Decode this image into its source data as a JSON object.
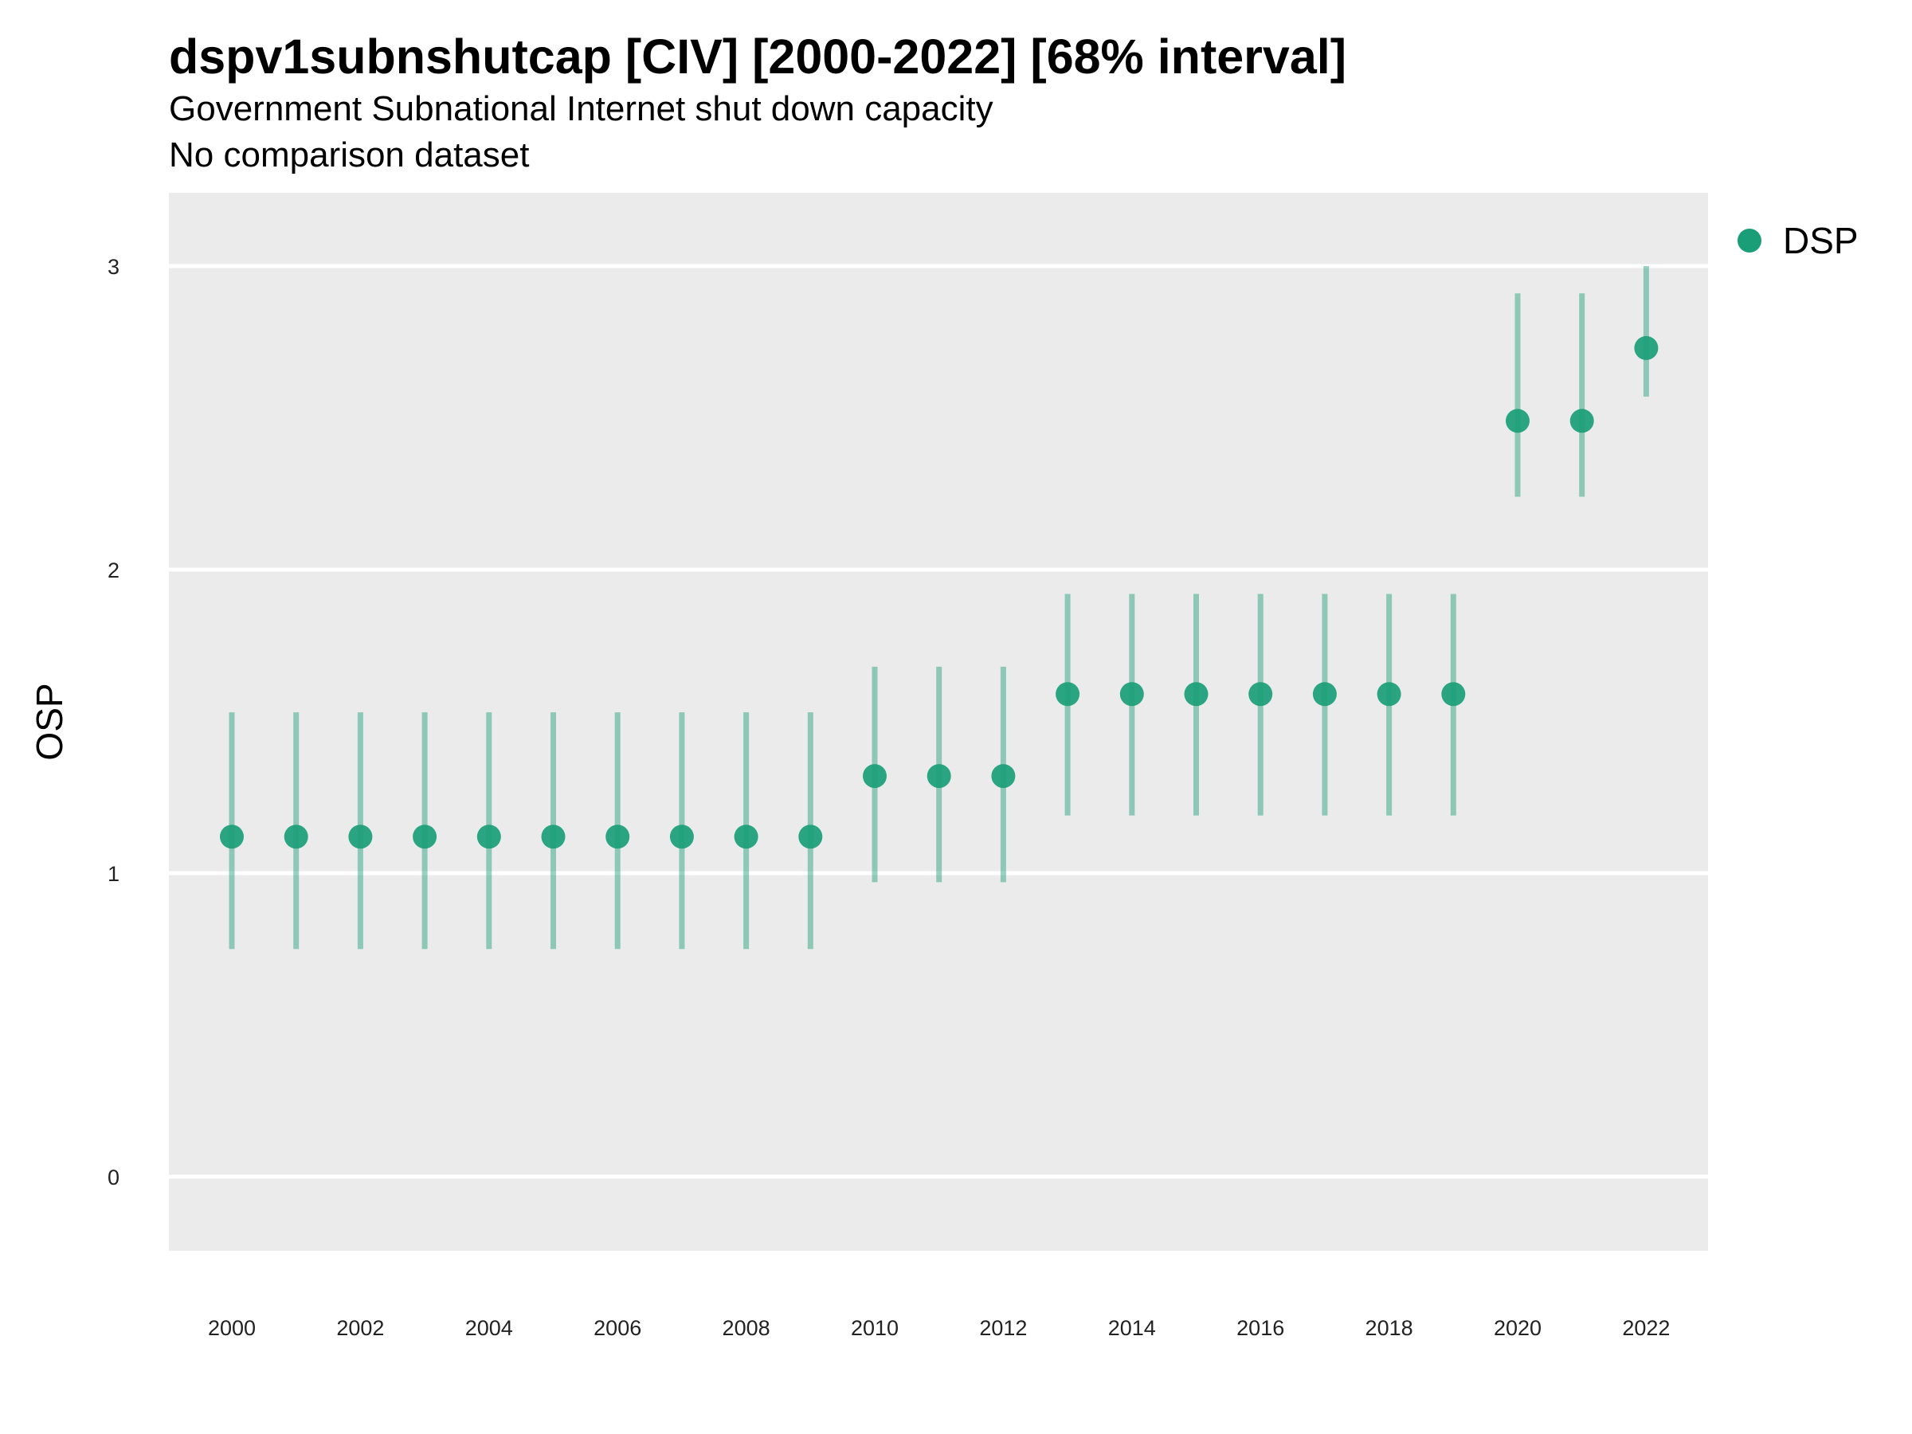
{
  "chart_data": {
    "type": "scatter",
    "title": "dspv1subnshutcap [CIV] [2000-2022] [68% interval]",
    "subtitle": "Government Subnational Internet shut down capacity",
    "caption": "No comparison dataset",
    "xlabel": "",
    "ylabel": "OSP",
    "xlim": [
      1999,
      2023
    ],
    "ylim": [
      -0.25,
      3.25
    ],
    "yticks": [
      0,
      1,
      2,
      3
    ],
    "xticks": [
      2000,
      2002,
      2004,
      2006,
      2008,
      2010,
      2012,
      2014,
      2016,
      2018,
      2020,
      2022
    ],
    "grid": true,
    "legend_position": "right",
    "series": [
      {
        "name": "DSP",
        "color": "#1a9e77",
        "x": [
          2000,
          2001,
          2002,
          2003,
          2004,
          2005,
          2006,
          2007,
          2008,
          2009,
          2010,
          2011,
          2012,
          2013,
          2014,
          2015,
          2016,
          2017,
          2018,
          2019,
          2020,
          2021,
          2022
        ],
        "y": [
          1.12,
          1.12,
          1.12,
          1.12,
          1.12,
          1.12,
          1.12,
          1.12,
          1.12,
          1.12,
          1.32,
          1.32,
          1.32,
          1.59,
          1.59,
          1.59,
          1.59,
          1.59,
          1.59,
          1.59,
          2.49,
          2.49,
          2.73
        ],
        "lower": [
          0.75,
          0.75,
          0.75,
          0.75,
          0.75,
          0.75,
          0.75,
          0.75,
          0.75,
          0.75,
          0.97,
          0.97,
          0.97,
          1.19,
          1.19,
          1.19,
          1.19,
          1.19,
          1.19,
          1.19,
          2.24,
          2.24,
          2.57
        ],
        "upper": [
          1.53,
          1.53,
          1.53,
          1.53,
          1.53,
          1.53,
          1.53,
          1.53,
          1.53,
          1.53,
          1.68,
          1.68,
          1.68,
          1.92,
          1.92,
          1.92,
          1.92,
          1.92,
          1.92,
          1.92,
          2.91,
          2.91,
          3.0
        ]
      }
    ]
  }
}
